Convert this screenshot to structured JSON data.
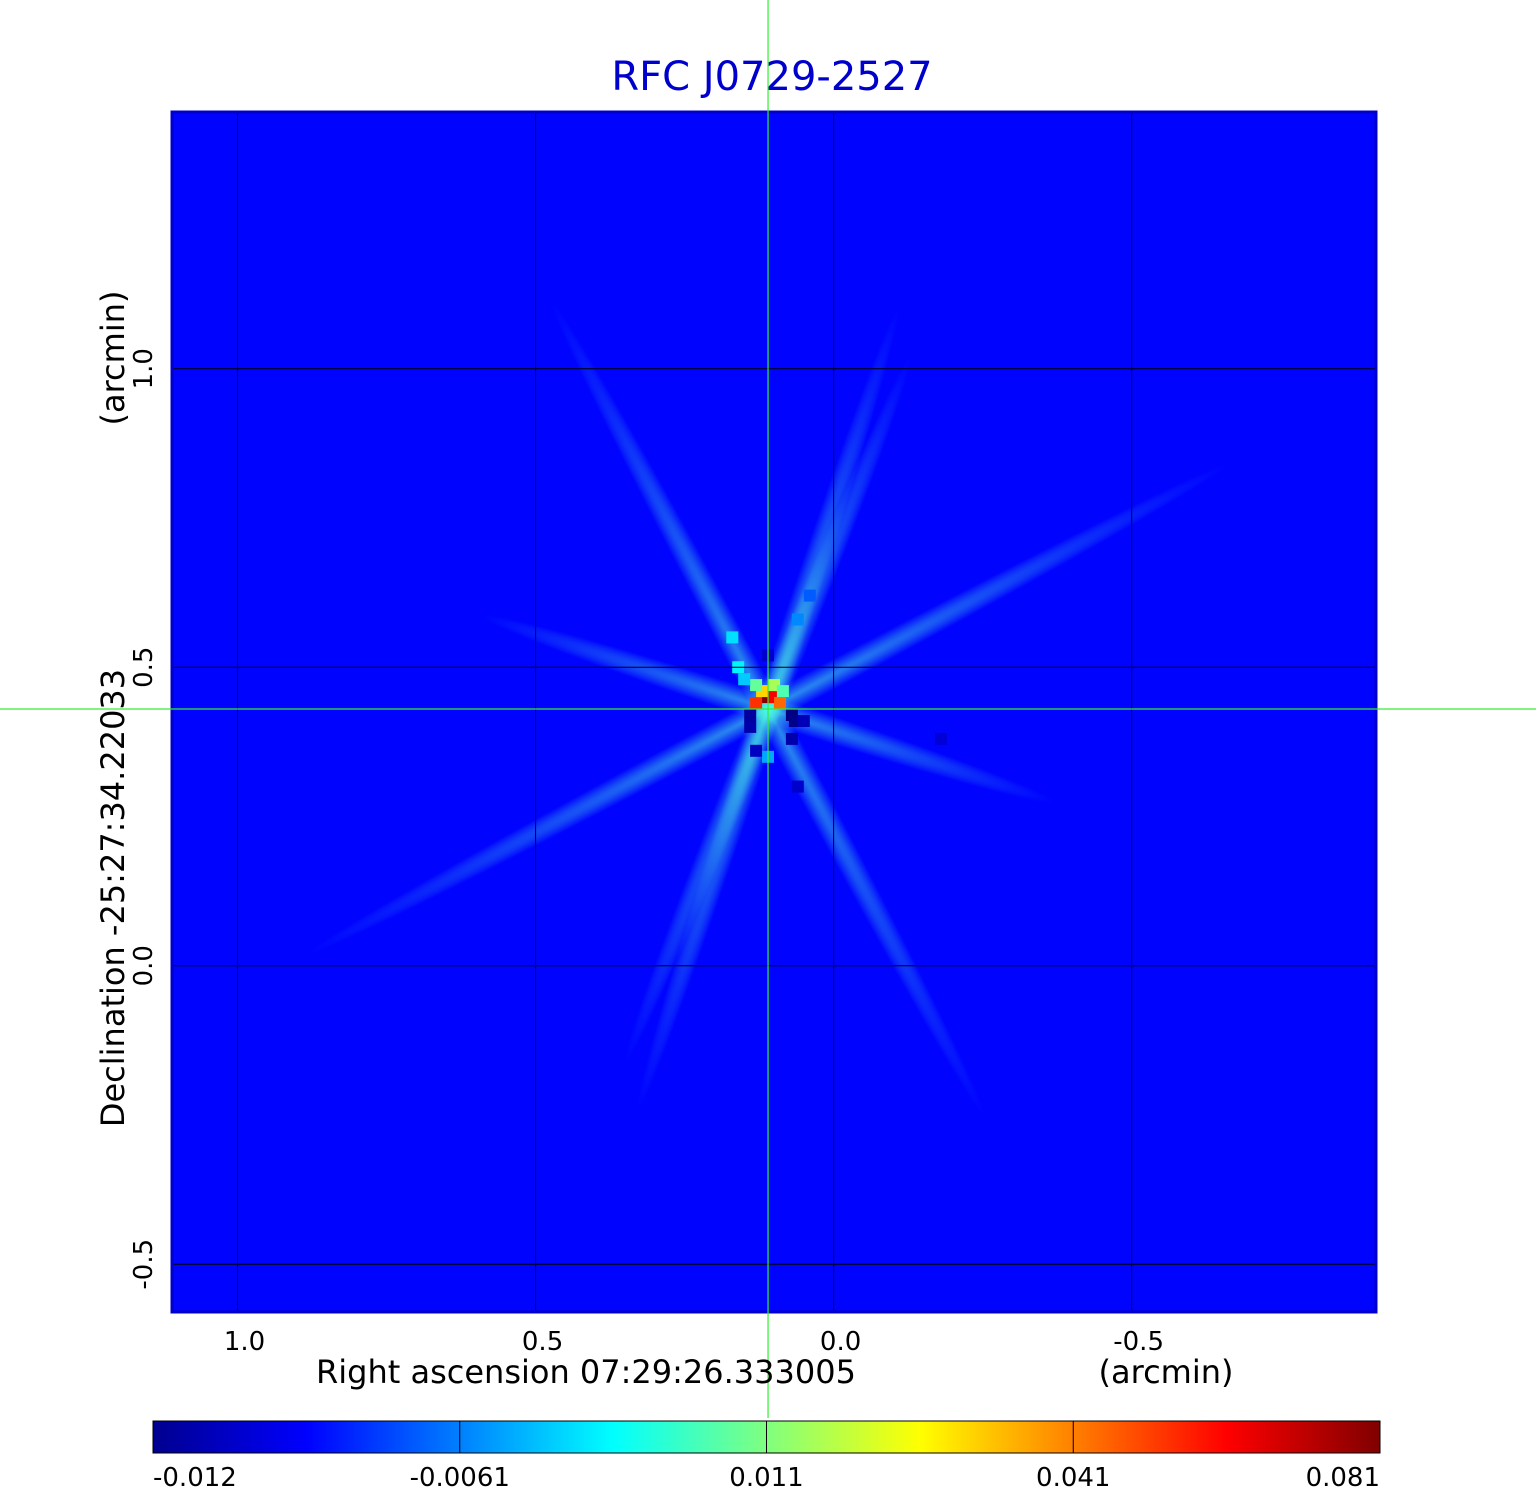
{
  "chart_data": {
    "type": "heatmap",
    "title": "RFC J0729-2527",
    "xlabel": "Right ascension  07:29:26.333005",
    "xunit": "(arcmin)",
    "ylabel": "Declination  -25:27:34.22033",
    "yunit": "(arcmin)",
    "xlim": [
      1.11,
      -0.91
    ],
    "ylim": [
      -0.58,
      1.43
    ],
    "x_ticks": [
      1.0,
      0.5,
      0.0,
      -0.5
    ],
    "x_tick_labels": [
      "1.0",
      "0.5",
      "0.0",
      "-0.5"
    ],
    "y_ticks": [
      1.0,
      0.5,
      0.0,
      -0.5
    ],
    "y_tick_labels": [
      "1.0",
      "0.5",
      "0.0",
      "-0.5"
    ],
    "grid": true,
    "crosshair": {
      "x": 0.11,
      "y": 0.43
    },
    "background_value": 0.0,
    "source_pixels": [
      {
        "x": 0.11,
        "y": 0.45,
        "value": 0.081
      },
      {
        "x": 0.1,
        "y": 0.45,
        "value": 0.07
      },
      {
        "x": 0.13,
        "y": 0.44,
        "value": 0.065
      },
      {
        "x": 0.09,
        "y": 0.44,
        "value": 0.06
      },
      {
        "x": 0.12,
        "y": 0.46,
        "value": 0.05
      },
      {
        "x": 0.1,
        "y": 0.47,
        "value": 0.038
      },
      {
        "x": 0.13,
        "y": 0.47,
        "value": 0.032
      },
      {
        "x": 0.085,
        "y": 0.46,
        "value": 0.03
      },
      {
        "x": 0.16,
        "y": 0.5,
        "value": 0.022
      },
      {
        "x": 0.17,
        "y": 0.55,
        "value": 0.02
      },
      {
        "x": 0.15,
        "y": 0.48,
        "value": 0.018
      },
      {
        "x": 0.06,
        "y": 0.58,
        "value": 0.012
      },
      {
        "x": 0.11,
        "y": 0.35,
        "value": 0.015
      },
      {
        "x": 0.04,
        "y": 0.62,
        "value": 0.008
      },
      {
        "x": 0.07,
        "y": 0.42,
        "value": -0.012
      },
      {
        "x": 0.065,
        "y": 0.41,
        "value": -0.011
      },
      {
        "x": 0.14,
        "y": 0.42,
        "value": -0.009
      },
      {
        "x": 0.14,
        "y": 0.4,
        "value": -0.008
      },
      {
        "x": 0.07,
        "y": 0.38,
        "value": -0.008
      },
      {
        "x": 0.05,
        "y": 0.41,
        "value": -0.007
      },
      {
        "x": 0.13,
        "y": 0.36,
        "value": -0.006
      },
      {
        "x": 0.06,
        "y": 0.3,
        "value": -0.005
      },
      {
        "x": 0.11,
        "y": 0.52,
        "value": -0.005
      },
      {
        "x": -0.18,
        "y": 0.38,
        "value": -0.004
      }
    ],
    "colorbar": {
      "colormap": "jet",
      "range": [
        -0.012,
        0.081
      ],
      "ticks": [
        -0.012,
        -0.0061,
        0.011,
        0.041,
        0.081
      ],
      "tick_labels": [
        "-0.012",
        "-0.0061",
        "0.011",
        "0.041",
        "0.081"
      ]
    },
    "colors": {
      "title": "#0000cc",
      "frame": "#0000cc",
      "grid": "#000000",
      "crosshair": "#33ee33"
    }
  }
}
